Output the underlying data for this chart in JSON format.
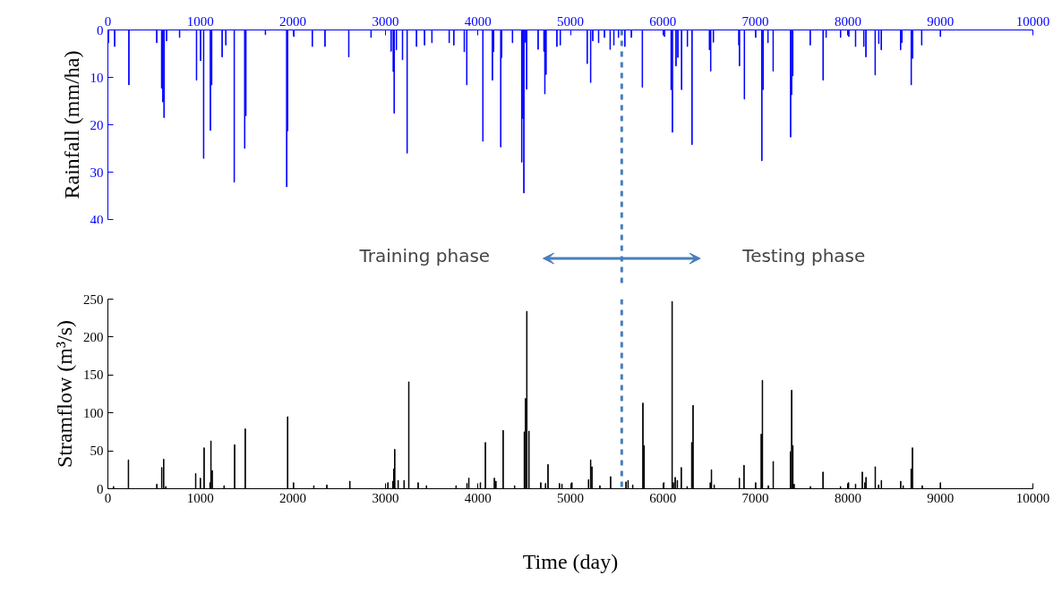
{
  "chart_data": [
    {
      "type": "bar",
      "ylabel": "Rainfall (mm/ha)",
      "color": "#0000ff",
      "x": [
        7,
        73,
        227,
        528,
        581,
        594,
        607,
        634,
        775,
        958,
        1002,
        1035,
        1108,
        1122,
        1235,
        1275,
        1366,
        1479,
        1492,
        1703,
        1933,
        1943,
        2010,
        2210,
        2347,
        2604,
        2845,
        3062,
        3085,
        3095,
        3119,
        3185,
        3235,
        3336,
        3423,
        3503,
        3690,
        3740,
        3853,
        3880,
        4054,
        4157,
        4170,
        4247,
        4257,
        4374,
        4474,
        4487,
        4497,
        4514,
        4527,
        4651,
        4714,
        4724,
        4737,
        4854,
        4891,
        5182,
        5219,
        5242,
        5305,
        5368,
        5430,
        5470,
        5520,
        5589,
        5659,
        5778,
        6017,
        6089,
        6103,
        6142,
        6162,
        6202,
        6265,
        6315,
        6503,
        6517,
        6546,
        6821,
        6828,
        6881,
        7003,
        7070,
        7083,
        7136,
        7192,
        7381,
        7391,
        7404,
        7593,
        7732,
        7765,
        7921,
        8010,
        8083,
        8172,
        8195,
        8295,
        8334,
        8361,
        8570,
        8583,
        8685,
        8699,
        8798,
        9000
      ],
      "values": [
        2.7,
        3.5,
        11.6,
        2.7,
        12.3,
        15.2,
        18.5,
        2.3,
        1.6,
        10.6,
        6.5,
        27.1,
        21.2,
        11.6,
        5.7,
        3.2,
        32.1,
        25.0,
        18.1,
        1.0,
        33.1,
        21.3,
        1.4,
        3.5,
        3.5,
        5.7,
        1.6,
        4.5,
        8.8,
        17.6,
        4.2,
        6.3,
        26.0,
        3.5,
        3.2,
        2.7,
        2.7,
        3.2,
        4.6,
        11.6,
        23.5,
        10.6,
        4.6,
        24.7,
        5.8,
        2.7,
        27.9,
        18.7,
        34.4,
        2.6,
        12.5,
        4.1,
        4.5,
        13.5,
        9.4,
        3.5,
        3.2,
        7.1,
        11.1,
        2.3,
        2.7,
        1.6,
        4.1,
        3.2,
        1.6,
        3.5,
        1.6,
        12.1,
        1.4,
        12.6,
        21.6,
        7.6,
        5.8,
        12.6,
        3.5,
        24.2,
        4.2,
        8.7,
        2.6,
        3.2,
        7.6,
        14.6,
        1.6,
        27.6,
        12.6,
        2.7,
        8.7,
        22.6,
        13.7,
        9.7,
        3.2,
        10.6,
        1.6,
        1.6,
        1.4,
        3.5,
        3.5,
        5.7,
        9.5,
        2.9,
        4.2,
        4.2,
        2.7,
        11.6,
        6.0,
        3.2,
        1.4
      ],
      "xlim": [
        0,
        10000
      ],
      "xticks": [
        0,
        1000,
        2000,
        3000,
        4000,
        5000,
        6000,
        7000,
        8000,
        9000,
        10000
      ],
      "ylim": [
        40,
        0
      ],
      "yticks": [
        0,
        10,
        20,
        30,
        40
      ],
      "ref_lines": [
        {
          "axis": "x",
          "value": 5555,
          "color": "#4a7ebb",
          "line_style": "dashed"
        }
      ],
      "annotations": [
        "Training phase",
        "Testing phase"
      ]
    },
    {
      "type": "bar",
      "ylabel": "Stramflow (m³/s)",
      "xlabel": "Time (day)",
      "color": "#000000",
      "x": [
        61,
        222,
        529,
        582,
        603,
        626,
        949,
        1000,
        1040,
        1104,
        1114,
        1128,
        1256,
        1370,
        1485,
        1943,
        2007,
        2226,
        2367,
        2616,
        3027,
        3081,
        3091,
        3101,
        3138,
        3202,
        3253,
        3354,
        3444,
        3764,
        3882,
        3902,
        4027,
        4081,
        4178,
        4195,
        4273,
        4397,
        4502,
        4515,
        4529,
        4552,
        4680,
        4731,
        4758,
        4882,
        4909,
        5017,
        5196,
        5219,
        5233,
        5319,
        5435,
        5601,
        5624,
        5674,
        5784,
        5797,
        6010,
        6100,
        6113,
        6133,
        6156,
        6199,
        6262,
        6312,
        6326,
        6512,
        6525,
        6555,
        6827,
        6877,
        7003,
        7063,
        7076,
        7140,
        7193,
        7379,
        7392,
        7405,
        7419,
        7595,
        7731,
        7920,
        8007,
        8083,
        8156,
        8183,
        8196,
        8296,
        8332,
        8362,
        8571,
        8598,
        8684,
        8698,
        8804,
        9000
      ],
      "values": [
        3,
        38,
        6,
        28,
        39,
        3,
        20,
        14,
        54,
        8,
        63,
        24,
        4,
        58,
        79,
        95,
        8,
        4,
        5,
        10,
        8,
        10,
        26,
        52,
        11,
        11,
        141,
        8,
        4,
        4,
        7,
        14,
        8,
        61,
        14,
        10,
        77,
        4,
        75,
        119,
        234,
        76,
        8,
        7,
        32,
        7,
        6,
        8,
        12,
        38,
        29,
        4,
        16,
        9,
        11,
        5,
        113,
        57,
        8,
        247,
        8,
        15,
        11,
        28,
        3,
        61,
        110,
        8,
        25,
        5,
        14,
        31,
        8,
        72,
        143,
        4,
        36,
        49,
        130,
        57,
        6,
        3,
        22,
        3,
        8,
        6,
        22,
        8,
        15,
        29,
        5,
        11,
        10,
        4,
        26,
        54,
        4,
        8
      ],
      "xlim": [
        0,
        10000
      ],
      "xticks": [
        0,
        1000,
        2000,
        3000,
        4000,
        5000,
        6000,
        7000,
        8000,
        9000,
        10000
      ],
      "ylim": [
        0,
        250
      ],
      "yticks": [
        0,
        50,
        100,
        150,
        200,
        250
      ],
      "ref_lines": [
        {
          "axis": "x",
          "value": 5555,
          "color": "#4a7ebb",
          "line_style": "dashed"
        }
      ]
    }
  ]
}
